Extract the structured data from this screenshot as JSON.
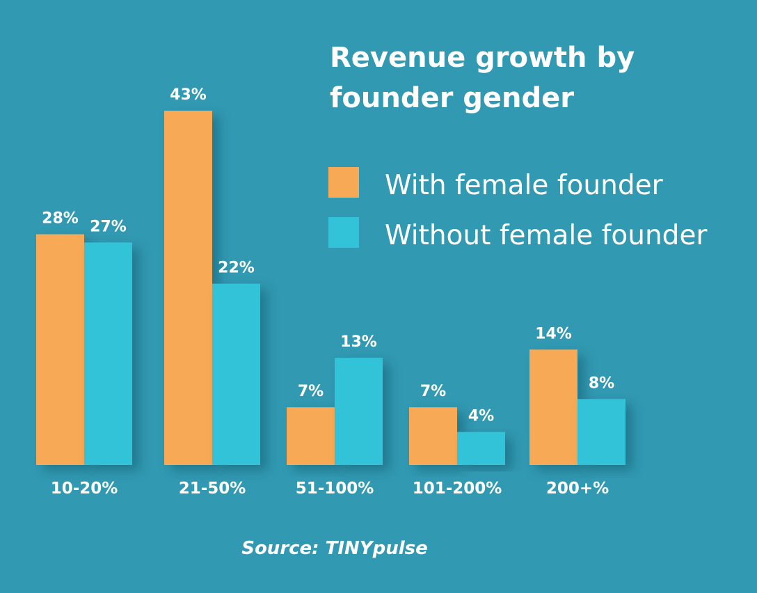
{
  "chart_data": {
    "type": "bar",
    "title": [
      "Revenue growth by",
      "founder gender"
    ],
    "xlabel": "",
    "ylabel": "",
    "ylim": [
      0,
      43
    ],
    "grid": false,
    "legend_position": "right",
    "categories": [
      "10-20%",
      "21-50%",
      "51-100%",
      "101-200%",
      "200+%"
    ],
    "series": [
      {
        "name": "With female founder",
        "color": "#F8A956",
        "values": [
          28,
          43,
          7,
          7,
          14
        ],
        "labels": [
          "28%",
          "43%",
          "7%",
          "7%",
          "14%"
        ]
      },
      {
        "name": "Without female founder",
        "color": "#33C3D9",
        "values": [
          27,
          22,
          13,
          4,
          8
        ],
        "labels": [
          "27%",
          "22%",
          "13%",
          "4%",
          "8%"
        ]
      }
    ],
    "source": "Source: TINYpulse"
  },
  "colors": {
    "background": "#3199B2",
    "text": "#FFFFFF"
  }
}
